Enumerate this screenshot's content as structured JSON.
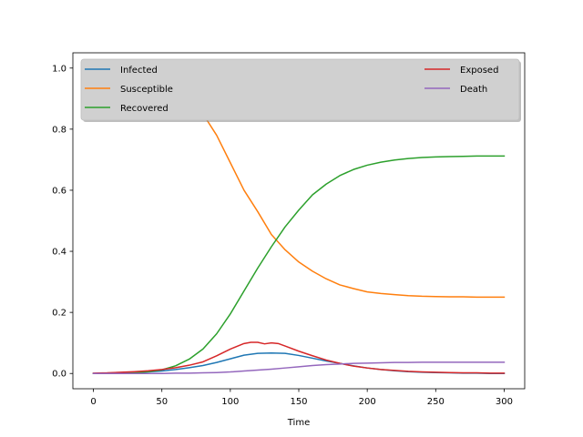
{
  "chart_data": {
    "type": "line",
    "title": "",
    "xlabel": "Time",
    "ylabel": "",
    "xlim": [
      -15,
      315
    ],
    "ylim": [
      -0.05,
      1.05
    ],
    "xticks": [
      0,
      50,
      100,
      150,
      200,
      250,
      300
    ],
    "xtick_labels": [
      "0",
      "50",
      "100",
      "150",
      "200",
      "250",
      "300"
    ],
    "yticks": [
      0.0,
      0.2,
      0.4,
      0.6,
      0.8,
      1.0
    ],
    "ytick_labels": [
      "0.0",
      "0.2",
      "0.4",
      "0.6",
      "0.8",
      "1.0"
    ],
    "grid": false,
    "legend_position": "top (two columns, shaded box)",
    "legend_order": [
      "Infected",
      "Susceptible",
      "Recovered",
      "Exposed",
      "Death"
    ],
    "series": [
      {
        "name": "Infected",
        "color": "#1f77b4",
        "x": [
          0,
          10,
          20,
          30,
          40,
          50,
          60,
          70,
          80,
          90,
          100,
          110,
          120,
          130,
          140,
          150,
          160,
          170,
          180,
          190,
          200,
          210,
          220,
          230,
          240,
          250,
          260,
          270,
          280,
          290,
          300
        ],
        "y": [
          0.0,
          0.001,
          0.002,
          0.003,
          0.005,
          0.008,
          0.013,
          0.019,
          0.026,
          0.036,
          0.048,
          0.06,
          0.066,
          0.067,
          0.066,
          0.059,
          0.05,
          0.041,
          0.033,
          0.025,
          0.018,
          0.013,
          0.009,
          0.006,
          0.004,
          0.003,
          0.002,
          0.001,
          0.001,
          0.0,
          0.0
        ]
      },
      {
        "name": "Susceptible",
        "color": "#ff7f0e",
        "x": [
          0,
          10,
          20,
          30,
          40,
          50,
          60,
          70,
          80,
          90,
          100,
          110,
          120,
          130,
          140,
          150,
          160,
          170,
          180,
          190,
          200,
          210,
          220,
          230,
          240,
          250,
          260,
          270,
          280,
          290,
          300
        ],
        "y": [
          1.0,
          0.997,
          0.992,
          0.985,
          0.975,
          0.96,
          0.935,
          0.9,
          0.85,
          0.78,
          0.69,
          0.6,
          0.53,
          0.455,
          0.405,
          0.365,
          0.335,
          0.31,
          0.29,
          0.278,
          0.267,
          0.262,
          0.258,
          0.255,
          0.253,
          0.252,
          0.251,
          0.251,
          0.25,
          0.25,
          0.25
        ]
      },
      {
        "name": "Recovered",
        "color": "#2ca02c",
        "x": [
          0,
          10,
          20,
          30,
          40,
          50,
          60,
          70,
          80,
          90,
          100,
          110,
          120,
          130,
          140,
          150,
          160,
          170,
          180,
          190,
          200,
          210,
          220,
          230,
          240,
          250,
          260,
          270,
          280,
          290,
          300
        ],
        "y": [
          0.0,
          0.0,
          0.001,
          0.003,
          0.006,
          0.012,
          0.025,
          0.047,
          0.08,
          0.13,
          0.195,
          0.27,
          0.345,
          0.415,
          0.48,
          0.535,
          0.585,
          0.62,
          0.648,
          0.668,
          0.682,
          0.692,
          0.699,
          0.704,
          0.707,
          0.709,
          0.71,
          0.711,
          0.712,
          0.712,
          0.712
        ]
      },
      {
        "name": "Exposed",
        "color": "#d62728",
        "x": [
          0,
          10,
          20,
          30,
          40,
          50,
          60,
          70,
          80,
          90,
          100,
          110,
          115,
          120,
          125,
          130,
          135,
          140,
          150,
          160,
          170,
          180,
          190,
          200,
          210,
          220,
          230,
          240,
          250,
          260,
          270,
          280,
          290,
          300
        ],
        "y": [
          0.001,
          0.002,
          0.004,
          0.006,
          0.009,
          0.013,
          0.019,
          0.027,
          0.038,
          0.058,
          0.08,
          0.098,
          0.102,
          0.102,
          0.097,
          0.1,
          0.098,
          0.09,
          0.073,
          0.058,
          0.044,
          0.033,
          0.024,
          0.018,
          0.013,
          0.01,
          0.007,
          0.005,
          0.004,
          0.003,
          0.002,
          0.002,
          0.001,
          0.001
        ]
      },
      {
        "name": "Death",
        "color": "#9467bd",
        "x": [
          0,
          10,
          20,
          30,
          40,
          50,
          60,
          70,
          80,
          90,
          100,
          110,
          120,
          130,
          140,
          150,
          160,
          170,
          180,
          190,
          200,
          210,
          220,
          230,
          240,
          250,
          260,
          270,
          280,
          290,
          300
        ],
        "y": [
          0.0,
          0.0,
          0.0,
          0.0,
          0.0,
          0.0,
          0.001,
          0.001,
          0.002,
          0.003,
          0.005,
          0.008,
          0.011,
          0.014,
          0.018,
          0.022,
          0.026,
          0.029,
          0.031,
          0.033,
          0.034,
          0.035,
          0.036,
          0.036,
          0.037,
          0.037,
          0.037,
          0.037,
          0.037,
          0.037,
          0.037
        ]
      }
    ]
  }
}
